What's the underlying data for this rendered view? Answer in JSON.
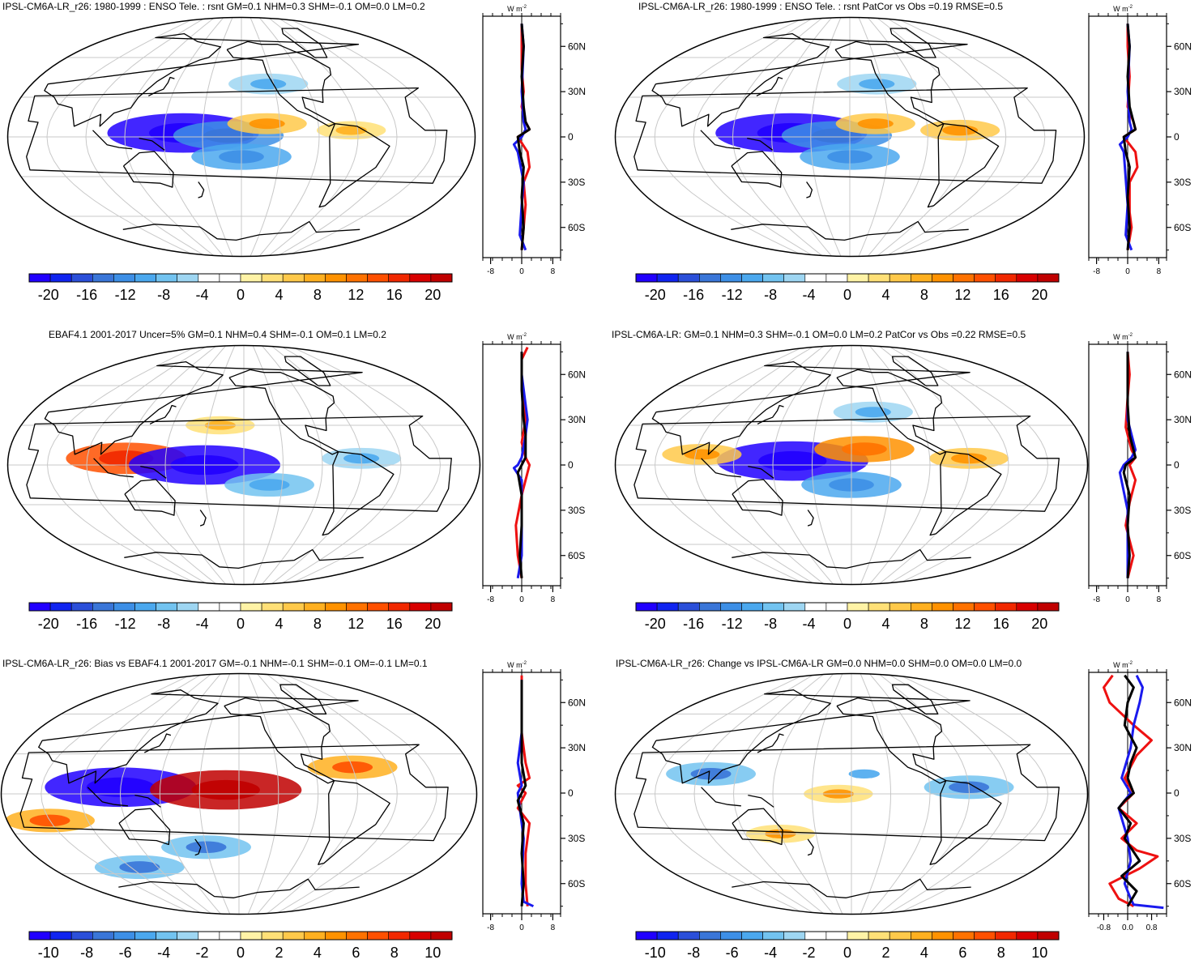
{
  "figure": {
    "panels": [
      {
        "id": "p1",
        "title": "IPSL-CM6A-LR_r26: 1980-1999 : ENSO Tele. : rsnt GM=0.1 NHM=0.3 SHM=-0.1 OM=0.0 LM=0.2",
        "colorbar_ticks": [
          "-20",
          "-16",
          "-12",
          "-8",
          "-4",
          "0",
          "4",
          "8",
          "12",
          "16",
          "20"
        ],
        "profile_unit": "W m-2",
        "profile_unit_sup": "-2",
        "profile_xticks": [
          "-8",
          "0",
          "8"
        ],
        "profile_yticks": [
          "60N",
          "30N",
          "0",
          "30S",
          "60S"
        ]
      },
      {
        "id": "p2",
        "title": "IPSL-CM6A-LR_r26: 1980-1999 : ENSO Tele. : rsnt PatCor vs Obs =0.19 RMSE=0.5",
        "colorbar_ticks": [
          "-20",
          "-16",
          "-12",
          "-8",
          "-4",
          "0",
          "4",
          "8",
          "12",
          "16",
          "20"
        ],
        "profile_unit": "W m-2",
        "profile_unit_sup": "-2",
        "profile_xticks": [
          "-8",
          "0",
          "8"
        ],
        "profile_yticks": [
          "60N",
          "30N",
          "0",
          "30S",
          "60S"
        ]
      },
      {
        "id": "p3",
        "title": "EBAF4.1 2001-2017 Uncer=5% GM=0.1 NHM=0.4 SHM=-0.1 OM=0.1 LM=0.2",
        "colorbar_ticks": [
          "-20",
          "-16",
          "-12",
          "-8",
          "-4",
          "0",
          "4",
          "8",
          "12",
          "16",
          "20"
        ],
        "profile_unit": "W m-2",
        "profile_unit_sup": "-2",
        "profile_xticks": [
          "-8",
          "0",
          "8"
        ],
        "profile_yticks": [
          "60N",
          "30N",
          "0",
          "30S",
          "60S"
        ]
      },
      {
        "id": "p4",
        "title": "IPSL-CM6A-LR: GM=0.1 NHM=0.3 SHM=-0.1 OM=0.0 LM=0.2 PatCor vs Obs =0.22 RMSE=0.5",
        "colorbar_ticks": [
          "-20",
          "-16",
          "-12",
          "-8",
          "-4",
          "0",
          "4",
          "8",
          "12",
          "16",
          "20"
        ],
        "profile_unit": "W m-2",
        "profile_unit_sup": "-2",
        "profile_xticks": [
          "-8",
          "0",
          "8"
        ],
        "profile_yticks": [
          "60N",
          "30N",
          "0",
          "30S",
          "60S"
        ]
      },
      {
        "id": "p5",
        "title": "IPSL-CM6A-LR_r26: Bias vs EBAF4.1 2001-2017 GM=-0.1 NHM=-0.1 SHM=-0.1 OM=-0.1 LM=0.1",
        "colorbar_ticks": [
          "-10",
          "-8",
          "-6",
          "-4",
          "-2",
          "0",
          "2",
          "4",
          "6",
          "8",
          "10"
        ],
        "profile_unit": "W m-2",
        "profile_unit_sup": "-2",
        "profile_xticks": [
          "-8",
          "0",
          "8"
        ],
        "profile_yticks": [
          "60N",
          "30N",
          "0",
          "30S",
          "60S"
        ]
      },
      {
        "id": "p6",
        "title": "IPSL-CM6A-LR_r26: Change vs IPSL-CM6A-LR GM=0.0 NHM=0.0 SHM=0.0 OM=0.0 LM=0.0",
        "colorbar_ticks": [
          "-10",
          "-8",
          "-6",
          "-4",
          "-2",
          "0",
          "2",
          "4",
          "6",
          "8",
          "10"
        ],
        "profile_unit": "W m-2",
        "profile_unit_sup": "-2",
        "profile_xticks": [
          "-0.8",
          "0.0",
          "0.8"
        ],
        "profile_yticks": [
          "60N",
          "30N",
          "0",
          "30S",
          "60S"
        ]
      }
    ]
  },
  "chart_data": [
    {
      "type": "heatmap",
      "panel": "p1",
      "title": "IPSL-CM6A-LR_r26: 1980-1999 : ENSO Tele. : rsnt GM=0.1 NHM=0.3 SHM=-0.1 OM=0.0 LM=0.2",
      "colorbar_range": [
        -22,
        22
      ],
      "features": [
        {
          "lon": 165,
          "lat": 3,
          "value": -20
        },
        {
          "lon": 200,
          "lat": 1,
          "value": -12
        },
        {
          "lon": 210,
          "lat": -15,
          "value": -10
        },
        {
          "lon": 230,
          "lat": 10,
          "value": 6
        },
        {
          "lon": 295,
          "lat": 5,
          "value": 4
        },
        {
          "lon": 235,
          "lat": 40,
          "value": -6
        }
      ],
      "profile": {
        "xlim": [
          -10,
          10
        ],
        "ylim": [
          -80,
          80
        ],
        "series": [
          {
            "name": "red",
            "lat": [
              -75,
              -60,
              -45,
              -30,
              -20,
              -10,
              0,
              5,
              10,
              20,
              30,
              45,
              60,
              75
            ],
            "values": [
              0,
              0.5,
              1,
              0.5,
              2,
              1.5,
              -1,
              2,
              1,
              0,
              0.5,
              0,
              0,
              0
            ]
          },
          {
            "name": "blue",
            "lat": [
              -75,
              -65,
              -45,
              -30,
              -10,
              -5,
              0,
              5,
              10,
              30,
              60,
              75
            ],
            "values": [
              1,
              -0.5,
              0,
              0.5,
              -1,
              -2,
              0,
              1,
              0.5,
              0,
              0.5,
              0
            ]
          },
          {
            "name": "black",
            "lat": [
              -75,
              -60,
              -40,
              -20,
              -10,
              0,
              5,
              10,
              20,
              40,
              60,
              75
            ],
            "values": [
              0,
              0.5,
              0,
              0.5,
              -0.5,
              -1,
              2,
              1,
              0.5,
              0,
              0.5,
              0
            ]
          }
        ]
      }
    },
    {
      "type": "heatmap",
      "panel": "p2",
      "title": "IPSL-CM6A-LR_r26: 1980-1999 : ENSO Tele. : rsnt PatCor vs Obs =0.19 RMSE=0.5",
      "colorbar_range": [
        -22,
        22
      ],
      "features": [
        {
          "lon": 165,
          "lat": 3,
          "value": -20
        },
        {
          "lon": 200,
          "lat": 1,
          "value": -12
        },
        {
          "lon": 210,
          "lat": -15,
          "value": -10
        },
        {
          "lon": 230,
          "lat": 10,
          "value": 6
        },
        {
          "lon": 295,
          "lat": 5,
          "value": 6
        },
        {
          "lon": 235,
          "lat": 40,
          "value": -6
        }
      ],
      "profile": {
        "xlim": [
          -10,
          10
        ],
        "ylim": [
          -80,
          80
        ],
        "series": [
          {
            "name": "red",
            "lat": [
              -75,
              -60,
              -50,
              -30,
              -20,
              -10,
              0,
              5,
              10,
              20,
              40,
              60,
              75
            ],
            "values": [
              0,
              1,
              0.5,
              0.5,
              2.5,
              2,
              -1,
              2,
              1.5,
              0,
              0.5,
              0,
              0
            ]
          },
          {
            "name": "blue",
            "lat": [
              -75,
              -65,
              -45,
              -10,
              -5,
              0,
              5,
              10,
              30,
              60,
              75
            ],
            "values": [
              1,
              -0.5,
              0,
              -1,
              -2,
              0,
              1,
              0.5,
              0,
              0.5,
              0
            ]
          },
          {
            "name": "black",
            "lat": [
              -75,
              -60,
              -40,
              -20,
              -10,
              0,
              5,
              10,
              20,
              40,
              60,
              75
            ],
            "values": [
              0,
              0.5,
              0,
              0.5,
              -0.5,
              -1,
              2,
              1.5,
              0.5,
              0,
              0.5,
              0
            ]
          }
        ]
      }
    },
    {
      "type": "heatmap",
      "panel": "p3",
      "title": "EBAF4.1 2001-2017 Uncer=5% GM=0.1 NHM=0.4 SHM=-0.1 OM=0.1 LM=0.2",
      "colorbar_range": [
        -22,
        22
      ],
      "features": [
        {
          "lon": 120,
          "lat": 5,
          "value": 14
        },
        {
          "lon": 180,
          "lat": 0,
          "value": -20
        },
        {
          "lon": 230,
          "lat": -15,
          "value": -8
        },
        {
          "lon": 190,
          "lat": 30,
          "value": 4
        },
        {
          "lon": 300,
          "lat": 5,
          "value": -6
        }
      ],
      "profile": {
        "xlim": [
          -10,
          10
        ],
        "ylim": [
          -80,
          80
        ],
        "series": [
          {
            "name": "red",
            "lat": [
              -75,
              -60,
              -40,
              -20,
              -5,
              0,
              5,
              15,
              30,
              50,
              70,
              78
            ],
            "values": [
              0,
              -1,
              -1.5,
              0,
              1.5,
              2,
              1,
              0,
              1,
              0,
              0,
              1.5
            ]
          },
          {
            "name": "blue",
            "lat": [
              -75,
              -60,
              -30,
              -10,
              -2,
              0,
              5,
              20,
              30,
              60,
              75
            ],
            "values": [
              -1,
              0,
              0,
              0,
              -2,
              -1,
              0,
              1,
              1.5,
              0,
              0
            ]
          },
          {
            "name": "black",
            "lat": [
              -75,
              -60,
              -40,
              -20,
              -5,
              0,
              5,
              20,
              30,
              50,
              75
            ],
            "values": [
              0,
              -0.5,
              0,
              0,
              -1,
              0,
              1,
              1,
              0.5,
              0,
              0
            ]
          }
        ]
      }
    },
    {
      "type": "heatmap",
      "panel": "p4",
      "title": "IPSL-CM6A-LR: GM=0.1 NHM=0.3 SHM=-0.1 OM=0.0 LM=0.2 PatCor vs Obs =0.22 RMSE=0.5",
      "colorbar_range": [
        -22,
        22
      ],
      "features": [
        {
          "lon": 165,
          "lat": 3,
          "value": -20
        },
        {
          "lon": 210,
          "lat": -15,
          "value": -10
        },
        {
          "lon": 220,
          "lat": 12,
          "value": 10
        },
        {
          "lon": 95,
          "lat": 8,
          "value": 6
        },
        {
          "lon": 300,
          "lat": 5,
          "value": 6
        },
        {
          "lon": 230,
          "lat": 40,
          "value": -6
        }
      ],
      "profile": {
        "xlim": [
          -10,
          10
        ],
        "ylim": [
          -80,
          80
        ],
        "series": [
          {
            "name": "red",
            "lat": [
              -75,
              -60,
              -40,
              -25,
              -10,
              0,
              5,
              10,
              25,
              45,
              60,
              75
            ],
            "values": [
              0,
              1.5,
              -0.5,
              0.5,
              2,
              0.5,
              2,
              1,
              -0.5,
              0,
              0.5,
              0
            ]
          },
          {
            "name": "blue",
            "lat": [
              -75,
              -60,
              -30,
              -5,
              0,
              5,
              10,
              30,
              60,
              75
            ],
            "values": [
              0,
              0,
              0,
              -2,
              -1,
              1,
              2,
              0,
              0,
              0
            ]
          },
          {
            "name": "black",
            "lat": [
              -75,
              -60,
              -40,
              -20,
              -5,
              0,
              5,
              10,
              20,
              40,
              75
            ],
            "values": [
              0,
              0.5,
              0,
              0.5,
              -1,
              -0.5,
              2,
              1.5,
              0.5,
              0,
              0
            ]
          }
        ]
      }
    },
    {
      "type": "heatmap",
      "panel": "p5",
      "title": "IPSL-CM6A-LR_r26: Bias vs EBAF4.1 2001-2017 GM=-0.1 NHM=-0.1 SHM=-0.1 OM=-0.1 LM=0.1",
      "colorbar_range": [
        -11,
        11
      ],
      "features": [
        {
          "lon": 120,
          "lat": 5,
          "value": -10
        },
        {
          "lon": 200,
          "lat": 3,
          "value": 10
        },
        {
          "lon": 180,
          "lat": -40,
          "value": -4
        },
        {
          "lon": 60,
          "lat": -20,
          "value": 4
        },
        {
          "lon": 300,
          "lat": 20,
          "value": 4
        },
        {
          "lon": 100,
          "lat": -55,
          "value": -4
        }
      ],
      "profile": {
        "xlim": [
          -10,
          10
        ],
        "ylim": [
          -80,
          80
        ],
        "series": [
          {
            "name": "red",
            "lat": [
              -75,
              -60,
              -40,
              -20,
              -10,
              0,
              5,
              10,
              20,
              40,
              60,
              78
            ],
            "values": [
              1.5,
              1,
              1,
              2,
              -1,
              1,
              -1,
              2,
              1,
              0,
              0,
              0
            ]
          },
          {
            "name": "blue",
            "lat": [
              -75,
              -72,
              -60,
              -30,
              -10,
              0,
              5,
              20,
              40,
              60,
              75
            ],
            "values": [
              3,
              0.5,
              0,
              0.5,
              -0.5,
              -1,
              0,
              -1,
              0,
              0,
              0
            ]
          },
          {
            "name": "black",
            "lat": [
              -75,
              -60,
              -40,
              -20,
              -5,
              0,
              5,
              20,
              40,
              60,
              75
            ],
            "values": [
              0,
              0.5,
              0,
              0.5,
              -1,
              0,
              1,
              0,
              0,
              0,
              0
            ]
          }
        ]
      }
    },
    {
      "type": "heatmap",
      "panel": "p6",
      "title": "IPSL-CM6A-LR_r26: Change vs IPSL-CM6A-LR GM=0.0 NHM=0.0 SHM=0.0 OM=0.0 LM=0.0",
      "colorbar_range": [
        -11,
        11
      ],
      "features": [
        {
          "lon": 100,
          "lat": 15,
          "value": -4
        },
        {
          "lon": 200,
          "lat": 0,
          "value": 2
        },
        {
          "lon": 220,
          "lat": 15,
          "value": -2
        },
        {
          "lon": 150,
          "lat": -30,
          "value": 2
        },
        {
          "lon": 300,
          "lat": 5,
          "value": -4
        }
      ],
      "profile": {
        "xlim": [
          -1.3,
          1.3
        ],
        "ylim": [
          -80,
          80
        ],
        "series": [
          {
            "name": "red",
            "lat": [
              -75,
              -70,
              -60,
              -50,
              -42,
              -38,
              -30,
              -20,
              -10,
              0,
              10,
              25,
              35,
              45,
              60,
              70,
              78
            ],
            "values": [
              0.2,
              -0.3,
              -0.6,
              0.4,
              1.0,
              0.3,
              -0.2,
              0.3,
              -0.3,
              0.2,
              -0.1,
              0.3,
              0.8,
              0.2,
              -0.6,
              -0.8,
              -0.5
            ]
          },
          {
            "name": "blue",
            "lat": [
              -76,
              -74,
              -70,
              -60,
              -45,
              -30,
              -10,
              0,
              10,
              30,
              45,
              60,
              70,
              78
            ],
            "values": [
              1.2,
              0.2,
              0.1,
              -0.1,
              0.1,
              0,
              -0.3,
              0.1,
              -0.2,
              0.1,
              0.2,
              0.4,
              0.5,
              0.3
            ]
          },
          {
            "name": "black",
            "lat": [
              -75,
              -65,
              -55,
              -45,
              -30,
              -20,
              -10,
              -5,
              0,
              10,
              20,
              30,
              45,
              60,
              70,
              78
            ],
            "values": [
              0,
              0.3,
              -0.2,
              0.4,
              -0.1,
              0.1,
              -0.3,
              -0.1,
              0.2,
              0,
              0.1,
              0.3,
              -0.1,
              0,
              0.2,
              -0.1
            ]
          }
        ]
      }
    }
  ]
}
